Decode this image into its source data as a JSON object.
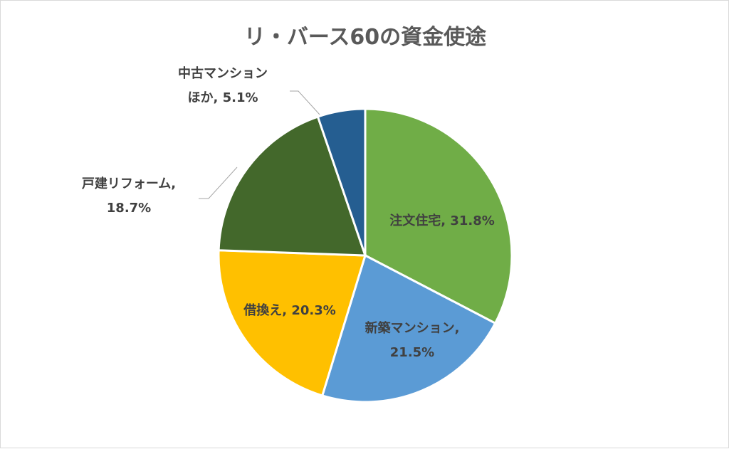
{
  "chart_data": {
    "type": "pie",
    "title": "リ・バース60の資金使途",
    "slices": [
      {
        "name": "注文住宅",
        "value": 31.8,
        "display": "31.8%",
        "color": "#70AD47"
      },
      {
        "name": "新築マンション",
        "value": 21.5,
        "display": "21.5%",
        "color": "#5B9BD5"
      },
      {
        "name": "借換え",
        "value": 20.3,
        "display": "20.3%",
        "color": "#FFC000"
      },
      {
        "name": "戸建リフォーム",
        "value": 18.7,
        "display": "18.7%",
        "color": "#43682B"
      },
      {
        "name": "中古マンションほか",
        "value": 5.1,
        "display": "5.1%",
        "color": "#255E91"
      }
    ],
    "label_lines": [
      [
        "注文住宅, 31.8%"
      ],
      [
        "新築マンション,",
        "21.5%"
      ],
      [
        "借換え, 20.3%"
      ],
      [
        "戸建リフォーム,",
        "18.7%"
      ],
      [
        "中古マンション",
        "ほか, 5.1%"
      ]
    ],
    "legend": "none"
  }
}
